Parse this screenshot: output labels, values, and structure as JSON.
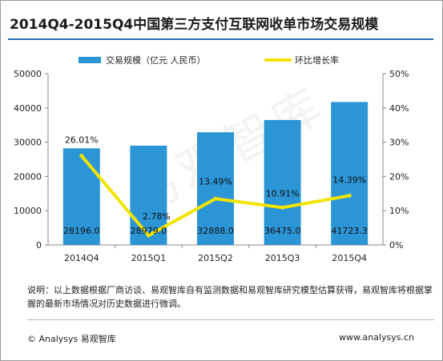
{
  "chart_data": {
    "type": "bar",
    "title": "2014Q4-2015Q4中国第三方支付互联网收单市场交易规模",
    "categories": [
      "2014Q4",
      "2015Q1",
      "2015Q2",
      "2015Q3",
      "2015Q4"
    ],
    "series": [
      {
        "name": "交易规模（亿元 人民币）",
        "type": "bar",
        "axis": "left",
        "color": "#2b95d6",
        "values": [
          28196.0,
          28979.0,
          32888.0,
          36475.0,
          41723.3
        ],
        "labels": [
          "28196.0",
          "28979.0",
          "32888.0",
          "36475.0",
          "41723.3"
        ]
      },
      {
        "name": "环比增长率",
        "type": "line",
        "axis": "right",
        "color": "#f2e400",
        "values": [
          26.01,
          2.78,
          13.49,
          10.91,
          14.39
        ],
        "labels": [
          "26.01%",
          "2.78%",
          "13.49%",
          "10.91%",
          "14.39%"
        ]
      }
    ],
    "y_left": {
      "min": 0,
      "max": 50000,
      "ticks": [
        "0",
        "10000",
        "20000",
        "30000",
        "40000",
        "50000"
      ]
    },
    "y_right": {
      "min": 0,
      "max": 50,
      "ticks": [
        "0%",
        "10%",
        "20%",
        "30%",
        "40%",
        "50%"
      ]
    },
    "legend_position": "top",
    "grid": false
  },
  "note": "说明：以上数据根据厂商访谈、易观智库自有监测数据和易观智库研究模型估算获得，易观智库将根据掌握的最新市场情况对历史数据进行微调。",
  "footer": {
    "copyright": "© Analysys 易观智库",
    "website": "www.analysys.cn"
  },
  "watermark": "易观智库"
}
